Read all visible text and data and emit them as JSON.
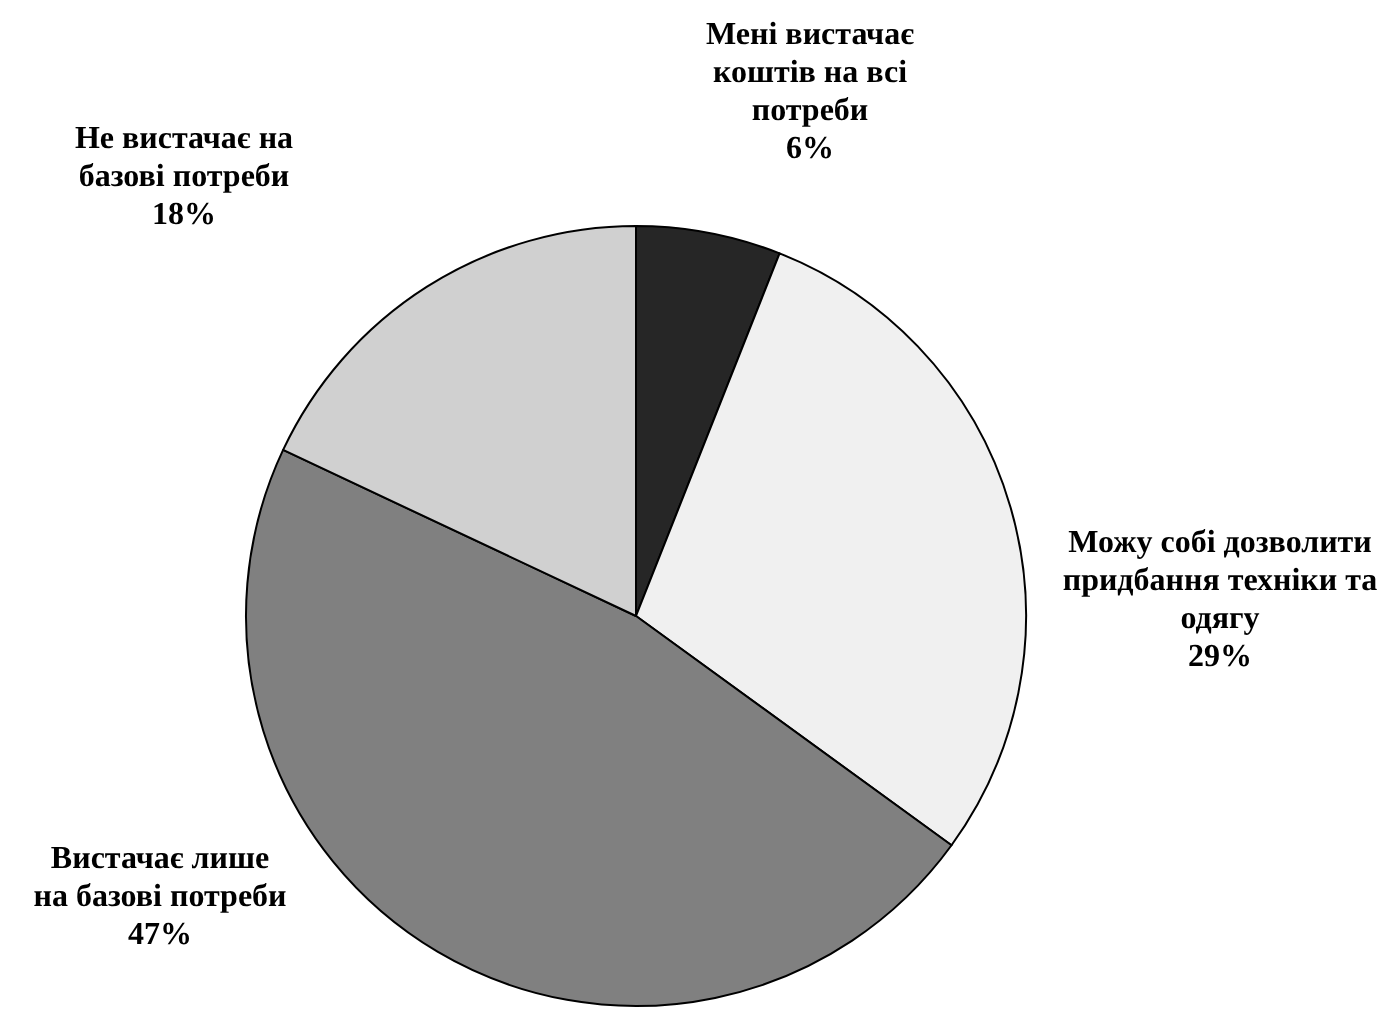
{
  "chart_data": {
    "type": "pie",
    "categories": [
      "Мені вистачає коштів на всі потреби",
      "Можу собі дозволити придбання техніки та одягу",
      "Вистачає лише на базові потреби",
      "Не вистачає на базові потреби"
    ],
    "values": [
      6,
      29,
      47,
      18
    ],
    "value_labels": [
      "6%",
      "29%",
      "47%",
      "18%"
    ],
    "colors": [
      "#262626",
      "#f0f0f0",
      "#808080",
      "#d0d0d0"
    ],
    "legend": false
  }
}
